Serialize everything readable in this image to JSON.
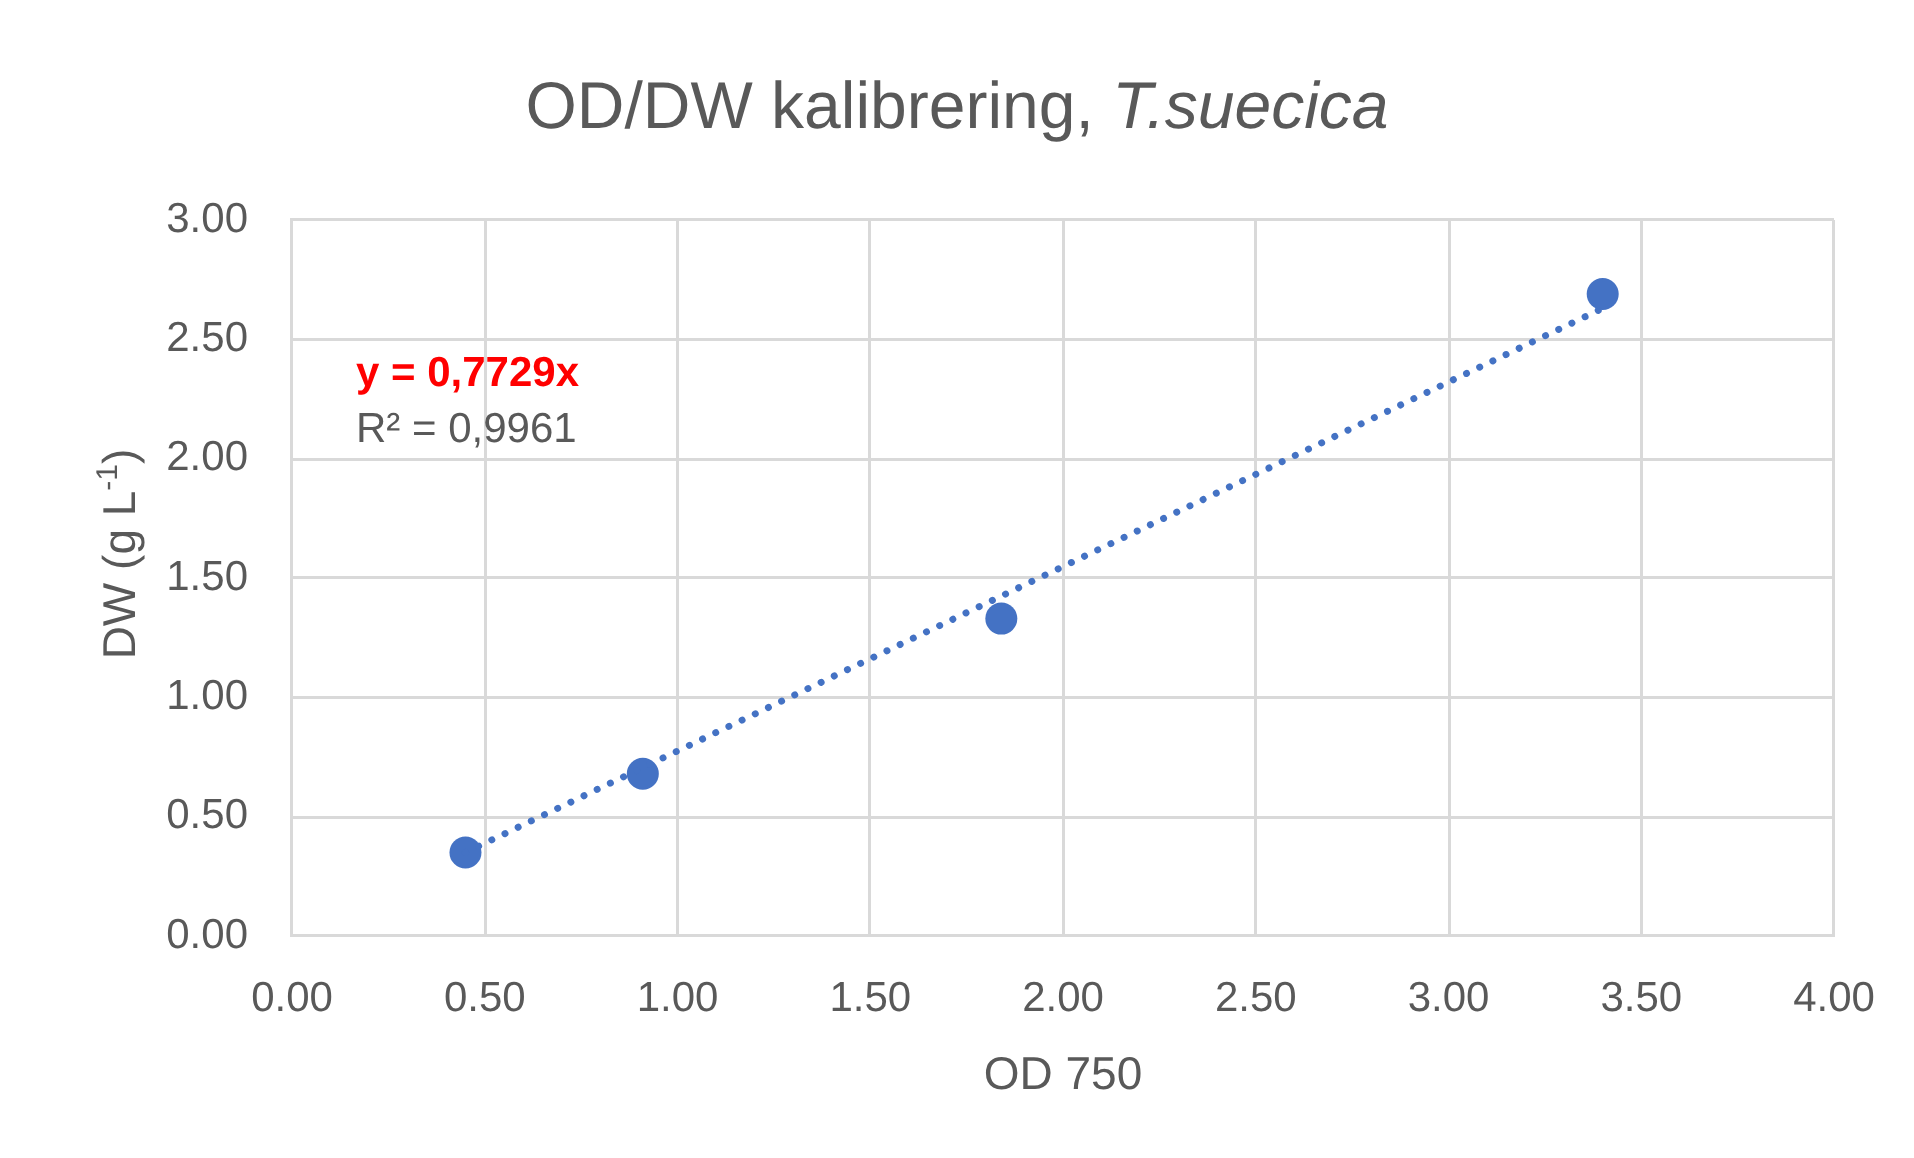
{
  "chart_data": {
    "type": "scatter",
    "title": "OD/DW kalibrering, T.suecica",
    "xlabel": "OD 750",
    "ylabel": "DW (g L$^{-1}$)",
    "series": [
      {
        "type": "scatter",
        "color": "#4472c4",
        "x": [
          0.45,
          0.91,
          1.84,
          3.4
        ],
        "values": [
          0.35,
          0.68,
          1.33,
          2.69
        ]
      },
      {
        "type": "line",
        "color": "#4472c4",
        "x": [
          0.45,
          3.4
        ],
        "values": [
          0.35,
          2.63
        ],
        "line_style": "dotted",
        "marker": "none"
      }
    ],
    "marker": "circle",
    "xlim": [
      0,
      4
    ],
    "xticks": [
      {
        "value": 0,
        "label": "0.00"
      },
      {
        "value": 0.5,
        "label": "0.50"
      },
      {
        "value": 1,
        "label": "1.00"
      },
      {
        "value": 1.5,
        "label": "1.50"
      },
      {
        "value": 2,
        "label": "2.00"
      },
      {
        "value": 2.5,
        "label": "2.50"
      },
      {
        "value": 3,
        "label": "3.00"
      },
      {
        "value": 3.5,
        "label": "3.50"
      },
      {
        "value": 4,
        "label": "4.00"
      }
    ],
    "ylim": [
      0,
      3
    ],
    "yticks": [
      {
        "value": 0,
        "label": "0.00"
      },
      {
        "value": 0.5,
        "label": "0.50"
      },
      {
        "value": 1,
        "label": "1.00"
      },
      {
        "value": 1.5,
        "label": "1.50"
      },
      {
        "value": 2,
        "label": "2.00"
      },
      {
        "value": 2.5,
        "label": "2.50"
      },
      {
        "value": 3,
        "label": "3.00"
      }
    ],
    "grid": true,
    "legend": false,
    "annotations": [
      "y = 0,7729x",
      "R² = 0,9961"
    ]
  }
}
